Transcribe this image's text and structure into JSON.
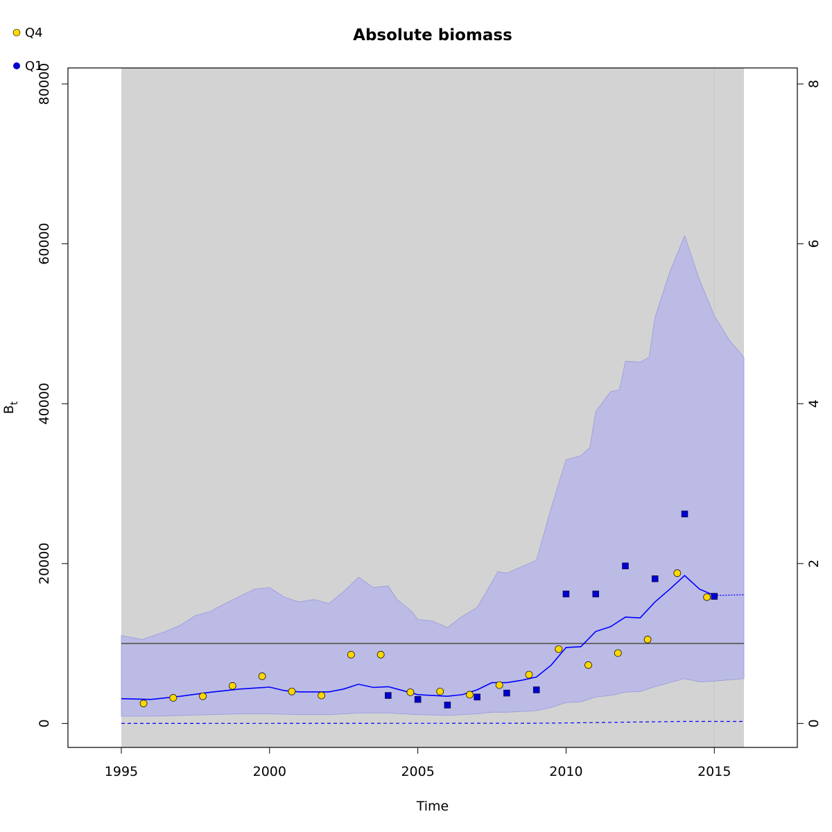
{
  "chart_data": {
    "type": "line",
    "title": "Absolute biomass",
    "xlabel": "Time",
    "ylabel": "B",
    "ylabel_sub": "t",
    "xlim": [
      1993.2,
      2017.8
    ],
    "ylim": [
      -3000,
      82000
    ],
    "y2lim": [
      -0.3,
      8.2
    ],
    "x_ticks": [
      1995,
      2000,
      2005,
      2010,
      2015
    ],
    "y_ticks": [
      0,
      20000,
      40000,
      60000,
      80000
    ],
    "y2_ticks": [
      0,
      2,
      4,
      6,
      8
    ],
    "grid": false,
    "legend_position": "top-left",
    "legend": [
      {
        "label": "Q4",
        "color": "#FFD700",
        "marker": "circle"
      },
      {
        "label": "Q1",
        "color": "#0000CD",
        "marker": "circle"
      }
    ],
    "shading": {
      "x0": 1995,
      "x1": 2016,
      "color": "#D3D3D3"
    },
    "vertical_line": {
      "x": 2015,
      "color": "#C8C8C8"
    },
    "reference_line": {
      "y": 10000,
      "color": "#666666"
    },
    "band_color": "#BBBBE6",
    "band_stroke": "#9999DD",
    "line_color": "#0000FF",
    "estimate": [
      [
        1995,
        3100
      ],
      [
        1996,
        3000
      ],
      [
        1997,
        3400
      ],
      [
        1998,
        3900
      ],
      [
        1999,
        4300
      ],
      [
        2000,
        4550
      ],
      [
        2000.5,
        4100
      ],
      [
        2001,
        3950
      ],
      [
        2002,
        3950
      ],
      [
        2002.5,
        4300
      ],
      [
        2003,
        4900
      ],
      [
        2003.5,
        4500
      ],
      [
        2004,
        4600
      ],
      [
        2004.3,
        4300
      ],
      [
        2005,
        3600
      ],
      [
        2006,
        3400
      ],
      [
        2006.5,
        3600
      ],
      [
        2007,
        4200
      ],
      [
        2007.5,
        5100
      ],
      [
        2008,
        5100
      ],
      [
        2008.5,
        5400
      ],
      [
        2009,
        5800
      ],
      [
        2009.5,
        7300
      ],
      [
        2010,
        9500
      ],
      [
        2010.5,
        9600
      ],
      [
        2011,
        11500
      ],
      [
        2011.5,
        12100
      ],
      [
        2012,
        13300
      ],
      [
        2012.5,
        13200
      ],
      [
        2013,
        15200
      ],
      [
        2013.5,
        16800
      ],
      [
        2014,
        18500
      ],
      [
        2014.5,
        16800
      ],
      [
        2015,
        16000
      ]
    ],
    "forecast": [
      [
        2015,
        16000
      ],
      [
        2016,
        16100
      ]
    ],
    "upper": [
      [
        1995,
        11000
      ],
      [
        1995.7,
        10500
      ],
      [
        1996.5,
        11500
      ],
      [
        1997,
        12300
      ],
      [
        1997.5,
        13500
      ],
      [
        1998,
        14000
      ],
      [
        1998.5,
        15000
      ],
      [
        1999,
        15900
      ],
      [
        1999.5,
        16800
      ],
      [
        2000,
        17000
      ],
      [
        2000.5,
        15800
      ],
      [
        2001,
        15200
      ],
      [
        2001.5,
        15500
      ],
      [
        2002,
        15000
      ],
      [
        2002.5,
        16500
      ],
      [
        2003,
        18300
      ],
      [
        2003.5,
        17000
      ],
      [
        2004,
        17200
      ],
      [
        2004.3,
        15500
      ],
      [
        2004.8,
        14000
      ],
      [
        2005,
        13000
      ],
      [
        2005.5,
        12800
      ],
      [
        2006,
        12000
      ],
      [
        2006.5,
        13400
      ],
      [
        2007,
        14500
      ],
      [
        2007.3,
        16400
      ],
      [
        2007.7,
        19000
      ],
      [
        2008,
        18800
      ],
      [
        2008.5,
        19600
      ],
      [
        2009,
        20400
      ],
      [
        2009.5,
        27000
      ],
      [
        2010,
        33000
      ],
      [
        2010.5,
        33500
      ],
      [
        2010.8,
        34500
      ],
      [
        2011,
        39000
      ],
      [
        2011.5,
        41500
      ],
      [
        2011.8,
        41700
      ],
      [
        2012,
        45300
      ],
      [
        2012.5,
        45200
      ],
      [
        2012.8,
        45800
      ],
      [
        2013,
        50800
      ],
      [
        2013.5,
        56500
      ],
      [
        2014,
        61000
      ],
      [
        2014.5,
        55500
      ],
      [
        2015,
        51000
      ],
      [
        2015.5,
        48000
      ],
      [
        2016,
        45800
      ]
    ],
    "lower": [
      [
        1995,
        900
      ],
      [
        1996,
        900
      ],
      [
        1997,
        1000
      ],
      [
        1998,
        1100
      ],
      [
        1999,
        1200
      ],
      [
        2000,
        1200
      ],
      [
        2001,
        1100
      ],
      [
        2002,
        1100
      ],
      [
        2003,
        1300
      ],
      [
        2004,
        1300
      ],
      [
        2005,
        1100
      ],
      [
        2006,
        1000
      ],
      [
        2007,
        1200
      ],
      [
        2007.5,
        1400
      ],
      [
        2008,
        1400
      ],
      [
        2009,
        1600
      ],
      [
        2009.5,
        2000
      ],
      [
        2010,
        2600
      ],
      [
        2010.5,
        2700
      ],
      [
        2011,
        3300
      ],
      [
        2011.5,
        3500
      ],
      [
        2012,
        3900
      ],
      [
        2012.5,
        4000
      ],
      [
        2013,
        4600
      ],
      [
        2014,
        5600
      ],
      [
        2014.5,
        5200
      ],
      [
        2015,
        5300
      ],
      [
        2016,
        5600
      ]
    ],
    "q4_points": [
      [
        1995.75,
        2500
      ],
      [
        1996.75,
        3200
      ],
      [
        1997.75,
        3400
      ],
      [
        1998.75,
        4700
      ],
      [
        1999.75,
        5900
      ],
      [
        2000.75,
        4000
      ],
      [
        2001.75,
        3500
      ],
      [
        2002.75,
        8600
      ],
      [
        2003.75,
        8600
      ],
      [
        2004.75,
        3900
      ],
      [
        2005.75,
        4000
      ],
      [
        2006.75,
        3600
      ],
      [
        2007.75,
        4800
      ],
      [
        2008.75,
        6100
      ],
      [
        2009.75,
        9300
      ],
      [
        2010.75,
        7300
      ],
      [
        2011.75,
        8800
      ],
      [
        2012.75,
        10500
      ],
      [
        2013.75,
        18800
      ],
      [
        2014.75,
        15800
      ]
    ],
    "q1_points": [
      [
        2004,
        3500
      ],
      [
        2005,
        3000
      ],
      [
        2006,
        2300
      ],
      [
        2007,
        3300
      ],
      [
        2008,
        3800
      ],
      [
        2009,
        4200
      ],
      [
        2010,
        16200
      ],
      [
        2011,
        16200
      ],
      [
        2012,
        19700
      ],
      [
        2013,
        18100
      ],
      [
        2014,
        26200
      ],
      [
        2015,
        15900
      ]
    ],
    "secondary_dashed": [
      [
        1995,
        0
      ],
      [
        2009,
        30
      ],
      [
        2010,
        60
      ],
      [
        2014,
        250
      ],
      [
        2016,
        250
      ]
    ]
  }
}
